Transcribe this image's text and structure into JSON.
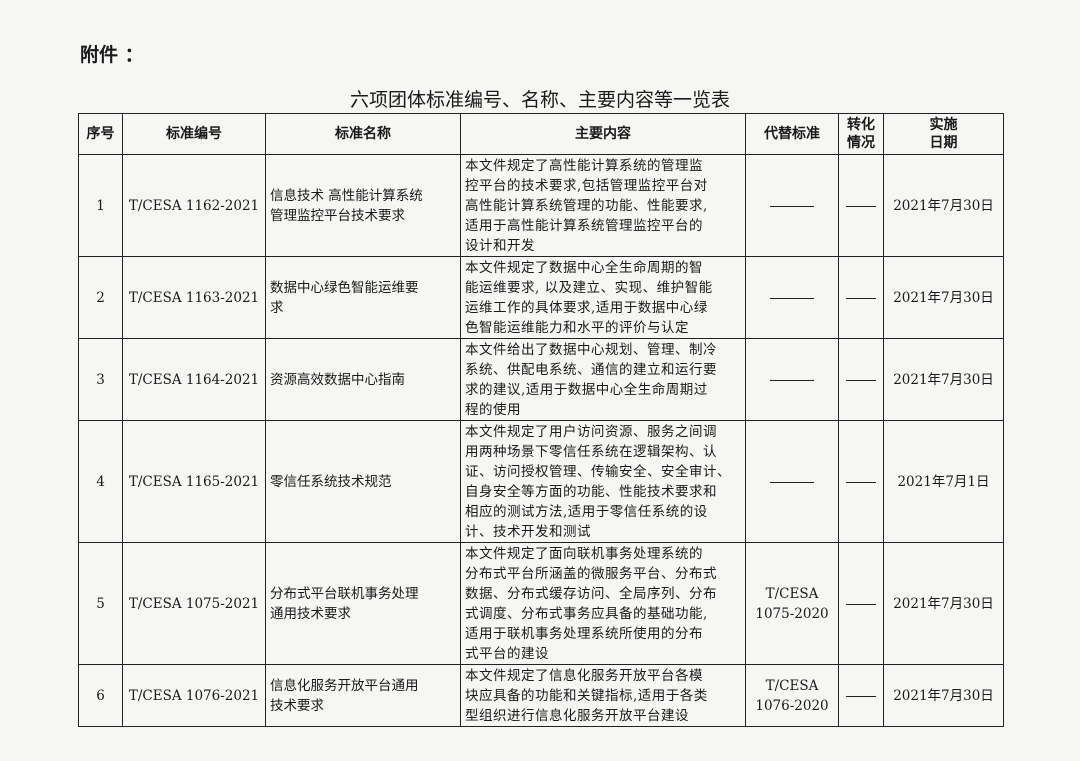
{
  "attachment_label": "附件 ：",
  "title": "六项团体标准编号、名称、主要内容等一览表",
  "columns": [
    "序号",
    "标准编号",
    "标准名称",
    "主要内容",
    "代替标准",
    "转化\n情况",
    "实施\n日期"
  ],
  "rows": [
    {
      "no": "1",
      "code": "T/CESA 1162-2021",
      "name": "信息技术 高性能计算系统\n管理监控平台技术要求",
      "content": "本文件规定了高性能计算系统的管理监\n控平台的技术要求,包括管理监控平台对\n高性能计算系统管理的功能、性能要求,\n适用于高性能计算系统管理监控平台的\n设计和开发",
      "replaces": "",
      "conversion": "",
      "date": "2021年7月30日"
    },
    {
      "no": "2",
      "code": "T/CESA 1163-2021",
      "name": "数据中心绿色智能运维要\n求",
      "content": "本文件规定了数据中心全生命周期的智\n能运维要求, 以及建立、实现、维护智能\n运维工作的具体要求,适用于数据中心绿\n色智能运维能力和水平的评价与认定",
      "replaces": "",
      "conversion": "",
      "date": "2021年7月30日"
    },
    {
      "no": "3",
      "code": "T/CESA 1164-2021",
      "name": "资源高效数据中心指南",
      "content": "本文件给出了数据中心规划、管理、制冷\n系统、供配电系统、通信的建立和运行要\n求的建议,适用于数据中心全生命周期过\n程的使用",
      "replaces": "",
      "conversion": "",
      "date": "2021年7月30日"
    },
    {
      "no": "4",
      "code": "T/CESA 1165-2021",
      "name": "零信任系统技术规范",
      "content": "本文件规定了用户访问资源、服务之间调\n用两种场景下零信任系统在逻辑架构、认\n证、访问授权管理、传输安全、安全审计、\n自身安全等方面的功能、性能技术要求和\n相应的测试方法,适用于零信任系统的设\n计、技术开发和测试",
      "replaces": "",
      "conversion": "",
      "date": "2021年7月1日"
    },
    {
      "no": "5",
      "code": "T/CESA 1075-2021",
      "name": "分布式平台联机事务处理\n通用技术要求",
      "content": "本文件规定了面向联机事务处理系统的\n分布式平台所涵盖的微服务平台、分布式\n数据、分布式缓存访问、全局序列、分布\n式调度、分布式事务应具备的基础功能,\n适用于联机事务处理系统所使用的分布\n式平台的建设",
      "replaces": "T/CESA\n1075-2020",
      "conversion": "",
      "date": "2021年7月30日"
    },
    {
      "no": "6",
      "code": "T/CESA 1076-2021",
      "name": "信息化服务开放平台通用\n技术要求",
      "content": "本文件规定了信息化服务开放平台各模\n块应具备的功能和关键指标,适用于各类\n型组织进行信息化服务开放平台建设",
      "replaces": "T/CESA\n1076-2020",
      "conversion": "",
      "date": "2021年7月30日"
    }
  ]
}
